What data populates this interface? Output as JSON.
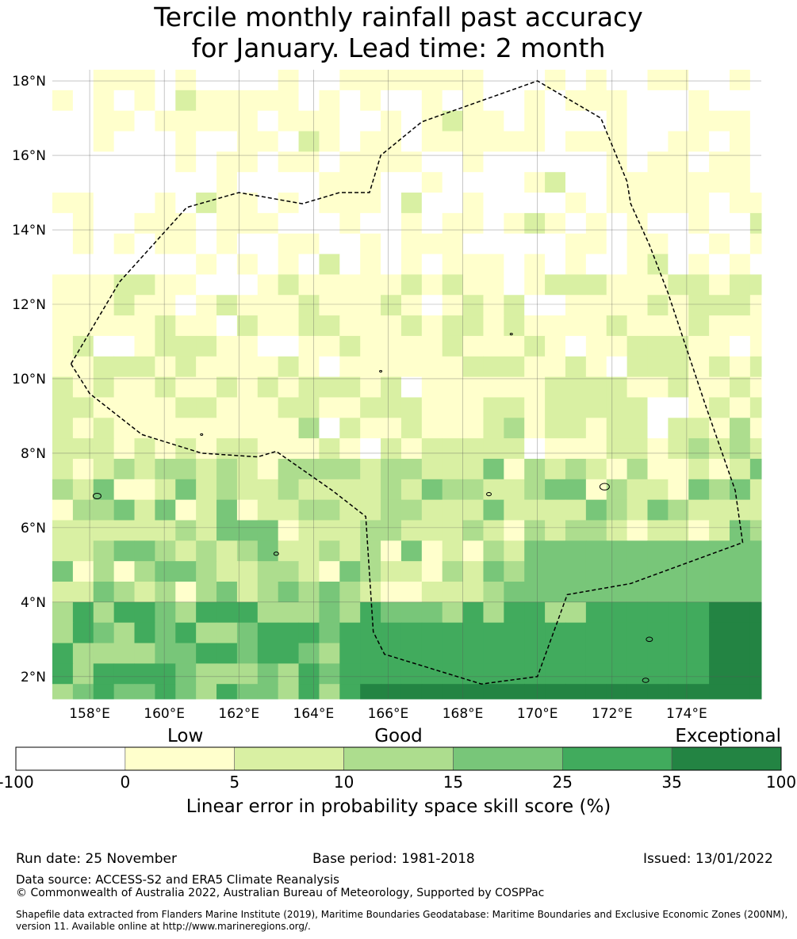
{
  "title_line1": "Tercile monthly rainfall past accuracy",
  "title_line2": "for January. Lead time: 2 month",
  "map": {
    "lon_range": [
      157,
      176
    ],
    "lat_range": [
      1.4,
      18.3
    ],
    "lat_ticks": [
      {
        "value": 18,
        "label": "18°N"
      },
      {
        "value": 16,
        "label": "16°N"
      },
      {
        "value": 14,
        "label": "14°N"
      },
      {
        "value": 12,
        "label": "12°N"
      },
      {
        "value": 10,
        "label": "10°N"
      },
      {
        "value": 8,
        "label": "8°N"
      },
      {
        "value": 6,
        "label": "6°N"
      },
      {
        "value": 4,
        "label": "4°N"
      },
      {
        "value": 2,
        "label": "2°N"
      }
    ],
    "lon_ticks": [
      {
        "value": 158,
        "label": "158°E"
      },
      {
        "value": 160,
        "label": "160°E"
      },
      {
        "value": 162,
        "label": "162°E"
      },
      {
        "value": 164,
        "label": "164°E"
      },
      {
        "value": 166,
        "label": "166°E"
      },
      {
        "value": 168,
        "label": "168°E"
      },
      {
        "value": 170,
        "label": "170°E"
      },
      {
        "value": 172,
        "label": "172°E"
      },
      {
        "value": 174,
        "label": "174°E"
      }
    ],
    "grid": true,
    "eez_boundary": [
      [
        157.5,
        10.4
      ],
      [
        158,
        9.6
      ],
      [
        159.4,
        8.5
      ],
      [
        161,
        8
      ],
      [
        162.5,
        7.9
      ],
      [
        163,
        8.05
      ],
      [
        164.5,
        7
      ],
      [
        165.4,
        6.3
      ],
      [
        165.6,
        3.2
      ],
      [
        165.9,
        2.6
      ],
      [
        168.5,
        1.8
      ],
      [
        170,
        2
      ],
      [
        170.8,
        4.2
      ],
      [
        172.5,
        4.5
      ],
      [
        175.5,
        5.6
      ],
      [
        175.3,
        7
      ],
      [
        174.5,
        9.3
      ],
      [
        174,
        10.8
      ],
      [
        173.5,
        12.3
      ],
      [
        173,
        13.6
      ],
      [
        172.5,
        14.7
      ],
      [
        172.4,
        15.3
      ],
      [
        171.7,
        17
      ],
      [
        170,
        18
      ],
      [
        166.9,
        16.9
      ],
      [
        165.8,
        16
      ],
      [
        165.5,
        15
      ],
      [
        164.7,
        15
      ],
      [
        163.7,
        14.7
      ],
      [
        162,
        15
      ],
      [
        160.6,
        14.6
      ],
      [
        158.8,
        12.6
      ],
      [
        157.5,
        10.4
      ]
    ]
  },
  "colorbar": {
    "categories": [
      {
        "label": "Low"
      },
      {
        "label": "Good"
      },
      {
        "label": "Exceptional"
      }
    ],
    "bins": [
      {
        "color": "#ffffff"
      },
      {
        "color": "#ffffcc"
      },
      {
        "color": "#d9f0a3"
      },
      {
        "color": "#addd8e"
      },
      {
        "color": "#78c679"
      },
      {
        "color": "#41ab5d"
      },
      {
        "color": "#238443"
      }
    ],
    "ticks": [
      "-100",
      "0",
      "5",
      "10",
      "15",
      "25",
      "35",
      "100"
    ],
    "label": "Linear error in probability space skill score (%)"
  },
  "footer": {
    "run_date": "Run date: 25 November",
    "base_period": "Base period: 1981-2018",
    "issued": "Issued: 13/01/2022",
    "data_source": "Data source: ACCESS-S2 and ERA5 Climate Reanalysis",
    "copyright": "© Commonwealth of Australia 2022, Australian Bureau of Meteorology, Supported by COSPPac",
    "shapefile_line1": "Shapefile data extracted from Flanders Marine Institute (2019), Maritime Boundaries Geodatabase: Maritime Boundaries and Exclusive Economic Zones (200NM),",
    "shapefile_line2": "version 11. Available online at http://www.marineregions.org/."
  }
}
